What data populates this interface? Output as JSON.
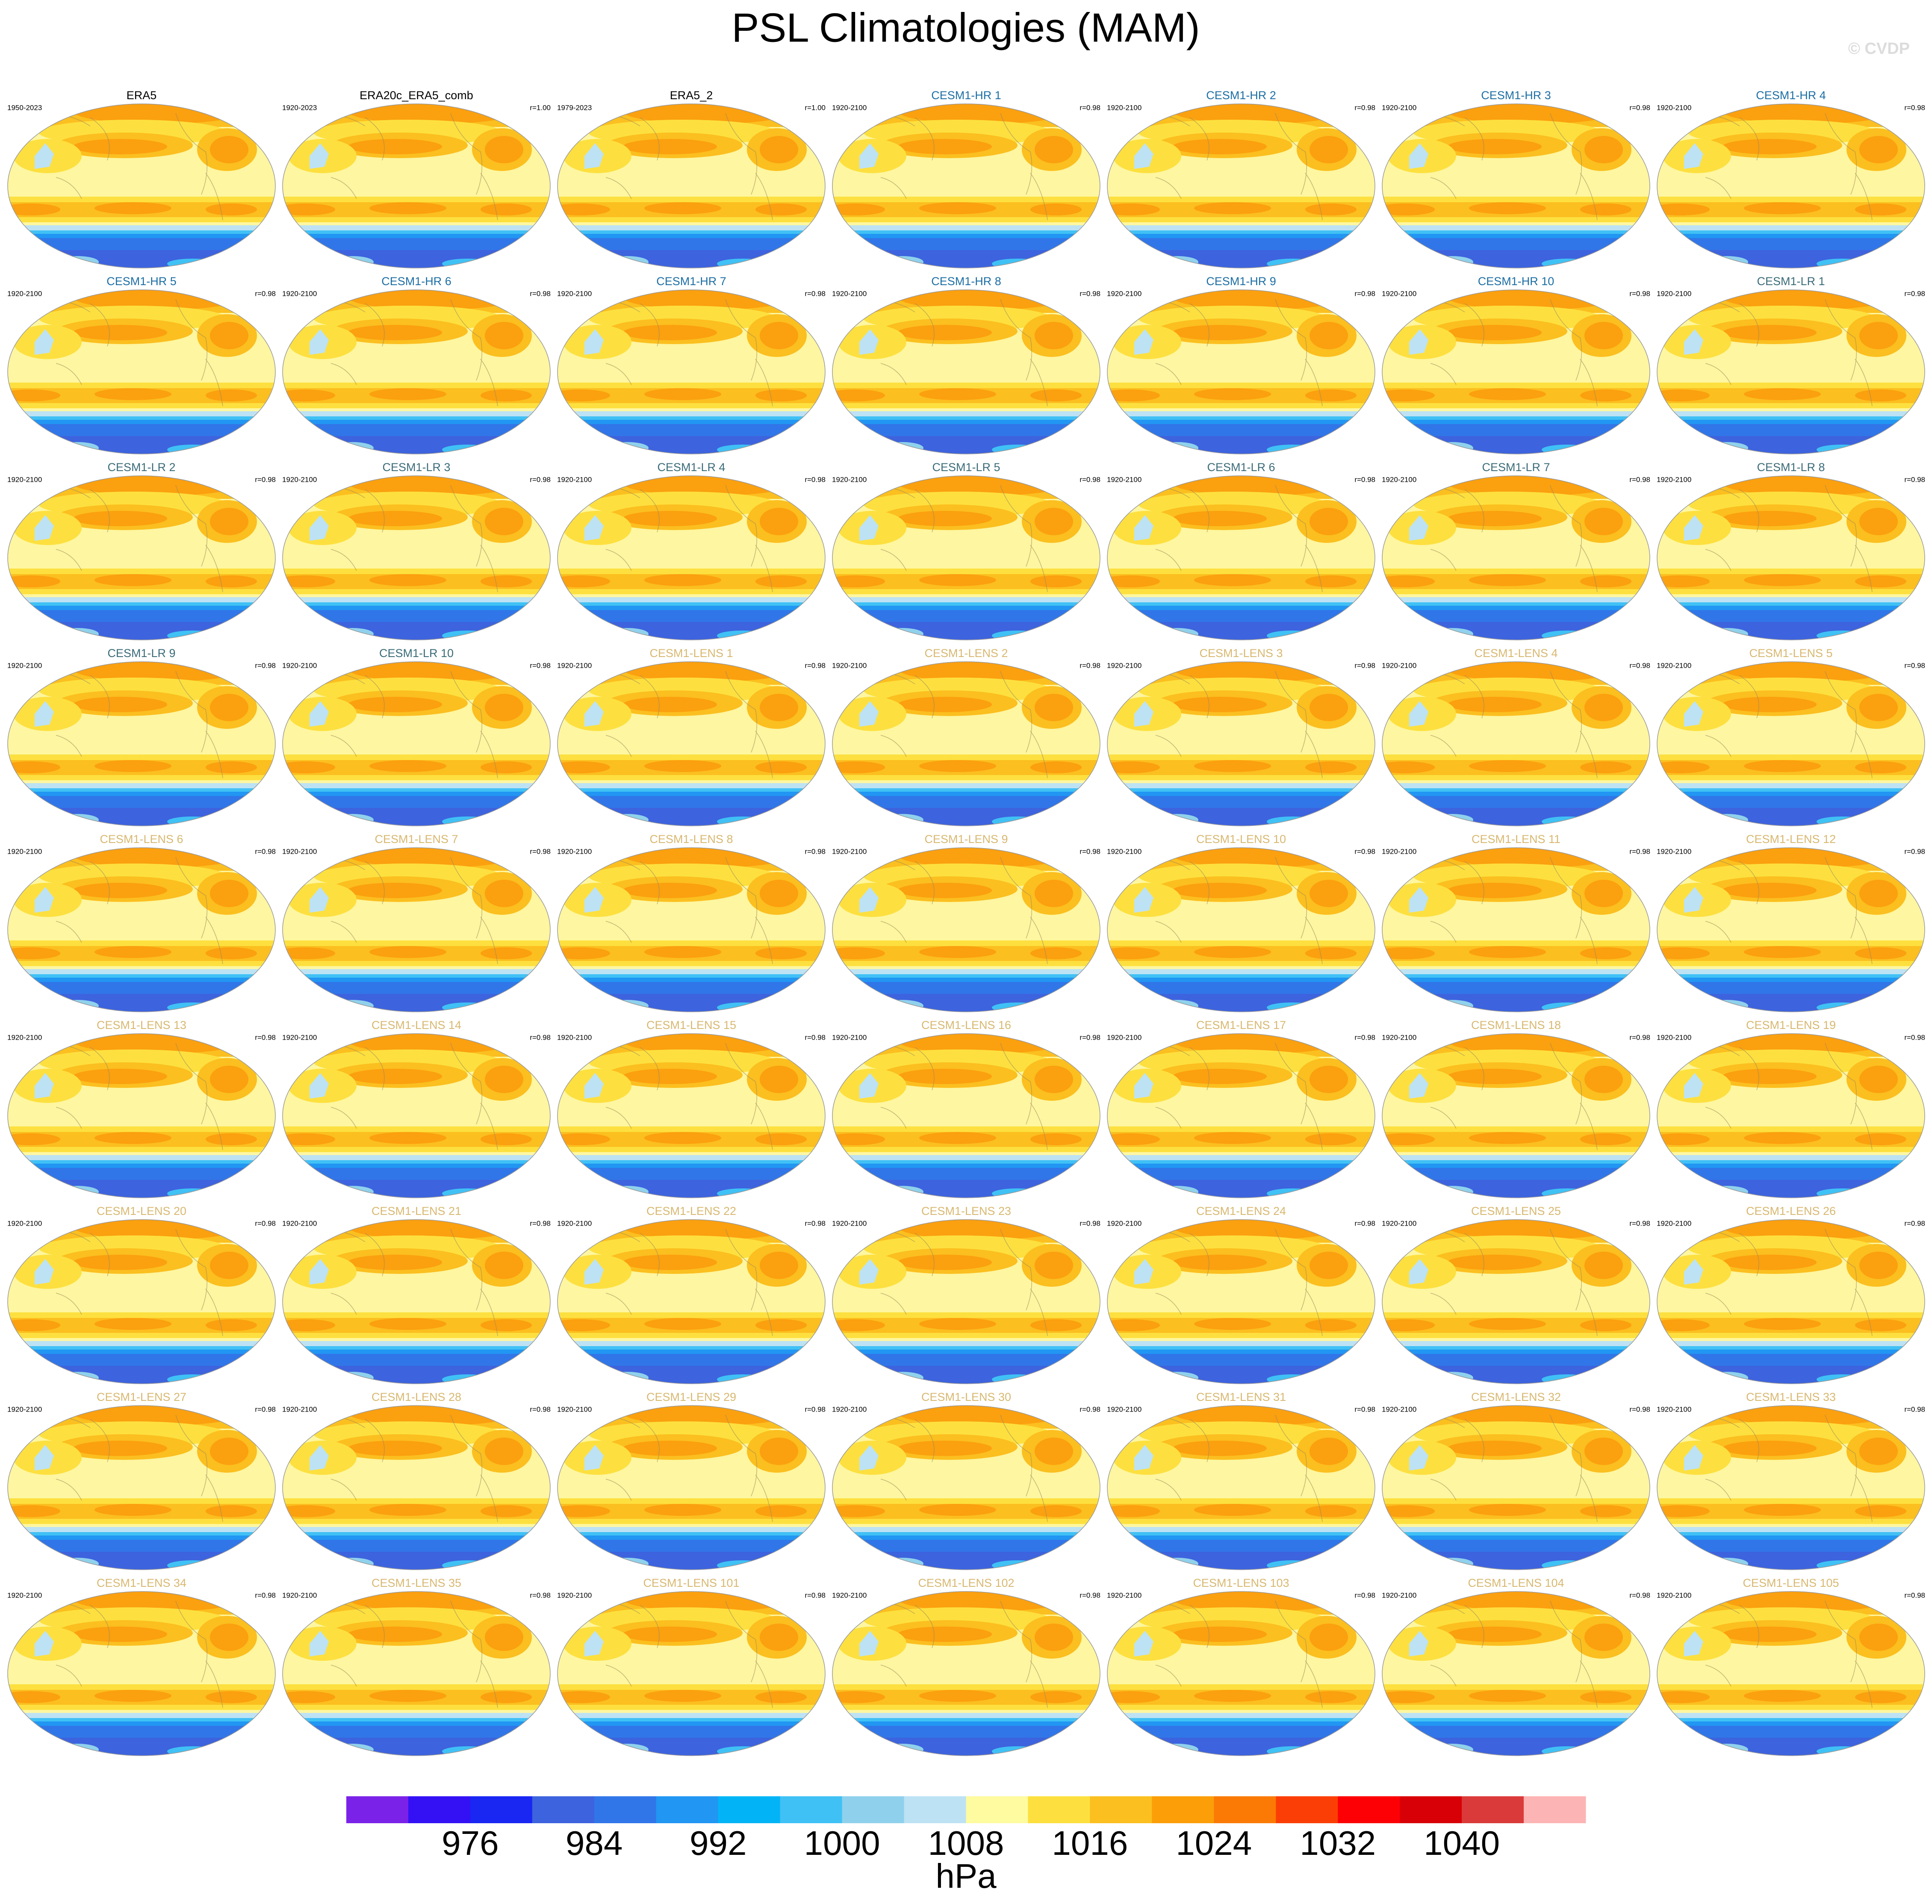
{
  "title": "PSL Climatologies (MAM)",
  "watermark": "© CVDP",
  "panels": [
    {
      "title": "ERA5",
      "period": "1950-2023",
      "color": "#000000"
    },
    {
      "title": "ERA20c_ERA5_comb",
      "period": "1920-2023",
      "r": "r=1.00",
      "color": "#000000"
    },
    {
      "title": "ERA5_2",
      "period": "1979-2023",
      "r": "r=1.00",
      "color": "#000000"
    },
    {
      "title": "CESM1-HR 1",
      "period": "1920-2100",
      "r": "r=0.98",
      "color": "#1c6ea4"
    },
    {
      "title": "CESM1-HR 2",
      "period": "1920-2100",
      "r": "r=0.98",
      "color": "#1c6ea4"
    },
    {
      "title": "CESM1-HR 3",
      "period": "1920-2100",
      "r": "r=0.98",
      "color": "#1c6ea4"
    },
    {
      "title": "CESM1-HR 4",
      "period": "1920-2100",
      "r": "r=0.98",
      "color": "#1c6ea4"
    },
    {
      "title": "CESM1-HR 5",
      "period": "1920-2100",
      "r": "r=0.98",
      "color": "#1c6ea4"
    },
    {
      "title": "CESM1-HR 6",
      "period": "1920-2100",
      "r": "r=0.98",
      "color": "#1c6ea4"
    },
    {
      "title": "CESM1-HR 7",
      "period": "1920-2100",
      "r": "r=0.98",
      "color": "#1c6ea4"
    },
    {
      "title": "CESM1-HR 8",
      "period": "1920-2100",
      "r": "r=0.98",
      "color": "#1c6ea4"
    },
    {
      "title": "CESM1-HR 9",
      "period": "1920-2100",
      "r": "r=0.98",
      "color": "#1c6ea4"
    },
    {
      "title": "CESM1-HR 10",
      "period": "1920-2100",
      "r": "r=0.98",
      "color": "#1c6ea4"
    },
    {
      "title": "CESM1-LR 1",
      "period": "1920-2100",
      "r": "r=0.98",
      "color": "#3a6b78"
    },
    {
      "title": "CESM1-LR 2",
      "period": "1920-2100",
      "r": "r=0.98",
      "color": "#3a6b78"
    },
    {
      "title": "CESM1-LR 3",
      "period": "1920-2100",
      "r": "r=0.98",
      "color": "#3a6b78"
    },
    {
      "title": "CESM1-LR 4",
      "period": "1920-2100",
      "r": "r=0.98",
      "color": "#3a6b78"
    },
    {
      "title": "CESM1-LR 5",
      "period": "1920-2100",
      "r": "r=0.98",
      "color": "#3a6b78"
    },
    {
      "title": "CESM1-LR 6",
      "period": "1920-2100",
      "r": "r=0.98",
      "color": "#3a6b78"
    },
    {
      "title": "CESM1-LR 7",
      "period": "1920-2100",
      "r": "r=0.98",
      "color": "#3a6b78"
    },
    {
      "title": "CESM1-LR 8",
      "period": "1920-2100",
      "r": "r=0.98",
      "color": "#3a6b78"
    },
    {
      "title": "CESM1-LR 9",
      "period": "1920-2100",
      "r": "r=0.98",
      "color": "#3a6b78"
    },
    {
      "title": "CESM1-LR 10",
      "period": "1920-2100",
      "r": "r=0.98",
      "color": "#3a6b78"
    },
    {
      "title": "CESM1-LENS 1",
      "period": "1920-2100",
      "r": "r=0.98",
      "color": "#d8b870"
    },
    {
      "title": "CESM1-LENS 2",
      "period": "1920-2100",
      "r": "r=0.98",
      "color": "#d8b870"
    },
    {
      "title": "CESM1-LENS 3",
      "period": "1920-2100",
      "r": "r=0.98",
      "color": "#d8b870"
    },
    {
      "title": "CESM1-LENS 4",
      "period": "1920-2100",
      "r": "r=0.98",
      "color": "#d8b870"
    },
    {
      "title": "CESM1-LENS 5",
      "period": "1920-2100",
      "r": "r=0.98",
      "color": "#d8b870"
    },
    {
      "title": "CESM1-LENS 6",
      "period": "1920-2100",
      "r": "r=0.98",
      "color": "#d8b870"
    },
    {
      "title": "CESM1-LENS 7",
      "period": "1920-2100",
      "r": "r=0.98",
      "color": "#d8b870"
    },
    {
      "title": "CESM1-LENS 8",
      "period": "1920-2100",
      "r": "r=0.98",
      "color": "#d8b870"
    },
    {
      "title": "CESM1-LENS 9",
      "period": "1920-2100",
      "r": "r=0.98",
      "color": "#d8b870"
    },
    {
      "title": "CESM1-LENS 10",
      "period": "1920-2100",
      "r": "r=0.98",
      "color": "#d8b870"
    },
    {
      "title": "CESM1-LENS 11",
      "period": "1920-2100",
      "r": "r=0.98",
      "color": "#d8b870"
    },
    {
      "title": "CESM1-LENS 12",
      "period": "1920-2100",
      "r": "r=0.98",
      "color": "#d8b870"
    },
    {
      "title": "CESM1-LENS 13",
      "period": "1920-2100",
      "r": "r=0.98",
      "color": "#d8b870"
    },
    {
      "title": "CESM1-LENS 14",
      "period": "1920-2100",
      "r": "r=0.98",
      "color": "#d8b870"
    },
    {
      "title": "CESM1-LENS 15",
      "period": "1920-2100",
      "r": "r=0.98",
      "color": "#d8b870"
    },
    {
      "title": "CESM1-LENS 16",
      "period": "1920-2100",
      "r": "r=0.98",
      "color": "#d8b870"
    },
    {
      "title": "CESM1-LENS 17",
      "period": "1920-2100",
      "r": "r=0.98",
      "color": "#d8b870"
    },
    {
      "title": "CESM1-LENS 18",
      "period": "1920-2100",
      "r": "r=0.98",
      "color": "#d8b870"
    },
    {
      "title": "CESM1-LENS 19",
      "period": "1920-2100",
      "r": "r=0.98",
      "color": "#d8b870"
    },
    {
      "title": "CESM1-LENS 20",
      "period": "1920-2100",
      "r": "r=0.98",
      "color": "#d8b870"
    },
    {
      "title": "CESM1-LENS 21",
      "period": "1920-2100",
      "r": "r=0.98",
      "color": "#d8b870"
    },
    {
      "title": "CESM1-LENS 22",
      "period": "1920-2100",
      "r": "r=0.98",
      "color": "#d8b870"
    },
    {
      "title": "CESM1-LENS 23",
      "period": "1920-2100",
      "r": "r=0.98",
      "color": "#d8b870"
    },
    {
      "title": "CESM1-LENS 24",
      "period": "1920-2100",
      "r": "r=0.98",
      "color": "#d8b870"
    },
    {
      "title": "CESM1-LENS 25",
      "period": "1920-2100",
      "r": "r=0.98",
      "color": "#d8b870"
    },
    {
      "title": "CESM1-LENS 26",
      "period": "1920-2100",
      "r": "r=0.98",
      "color": "#d8b870"
    },
    {
      "title": "CESM1-LENS 27",
      "period": "1920-2100",
      "r": "r=0.98",
      "color": "#d8b870"
    },
    {
      "title": "CESM1-LENS 28",
      "period": "1920-2100",
      "r": "r=0.98",
      "color": "#d8b870"
    },
    {
      "title": "CESM1-LENS 29",
      "period": "1920-2100",
      "r": "r=0.98",
      "color": "#d8b870"
    },
    {
      "title": "CESM1-LENS 30",
      "period": "1920-2100",
      "r": "r=0.98",
      "color": "#d8b870"
    },
    {
      "title": "CESM1-LENS 31",
      "period": "1920-2100",
      "r": "r=0.98",
      "color": "#d8b870"
    },
    {
      "title": "CESM1-LENS 32",
      "period": "1920-2100",
      "r": "r=0.98",
      "color": "#d8b870"
    },
    {
      "title": "CESM1-LENS 33",
      "period": "1920-2100",
      "r": "r=0.98",
      "color": "#d8b870"
    },
    {
      "title": "CESM1-LENS 34",
      "period": "1920-2100",
      "r": "r=0.98",
      "color": "#d8b870"
    },
    {
      "title": "CESM1-LENS 35",
      "period": "1920-2100",
      "r": "r=0.98",
      "color": "#d8b870"
    },
    {
      "title": "CESM1-LENS 101",
      "period": "1920-2100",
      "r": "r=0.98",
      "color": "#d8b870"
    },
    {
      "title": "CESM1-LENS 102",
      "period": "1920-2100",
      "r": "r=0.98",
      "color": "#d8b870"
    },
    {
      "title": "CESM1-LENS 103",
      "period": "1920-2100",
      "r": "r=0.98",
      "color": "#d8b870"
    },
    {
      "title": "CESM1-LENS 104",
      "period": "1920-2100",
      "r": "r=0.98",
      "color": "#d8b870"
    },
    {
      "title": "CESM1-LENS 105",
      "period": "1920-2100",
      "r": "r=0.98",
      "color": "#d8b870"
    }
  ],
  "colorbar": {
    "colors": [
      "#7b22e8",
      "#3411f5",
      "#1a26f2",
      "#3d63de",
      "#3176e8",
      "#2196f3",
      "#02b4f6",
      "#40c1f5",
      "#8fd1ec",
      "#bde2f4",
      "#fefba0",
      "#fde03f",
      "#fbbf1f",
      "#fb9e08",
      "#fb7a05",
      "#fb3e05",
      "#fd0005",
      "#d80006",
      "#db3a3a",
      "#fdb4b4"
    ],
    "lim": [
      968,
      1048
    ],
    "ticks": [
      976,
      984,
      992,
      1000,
      1008,
      1016,
      1024,
      1032,
      1040
    ],
    "label": "hPa"
  }
}
